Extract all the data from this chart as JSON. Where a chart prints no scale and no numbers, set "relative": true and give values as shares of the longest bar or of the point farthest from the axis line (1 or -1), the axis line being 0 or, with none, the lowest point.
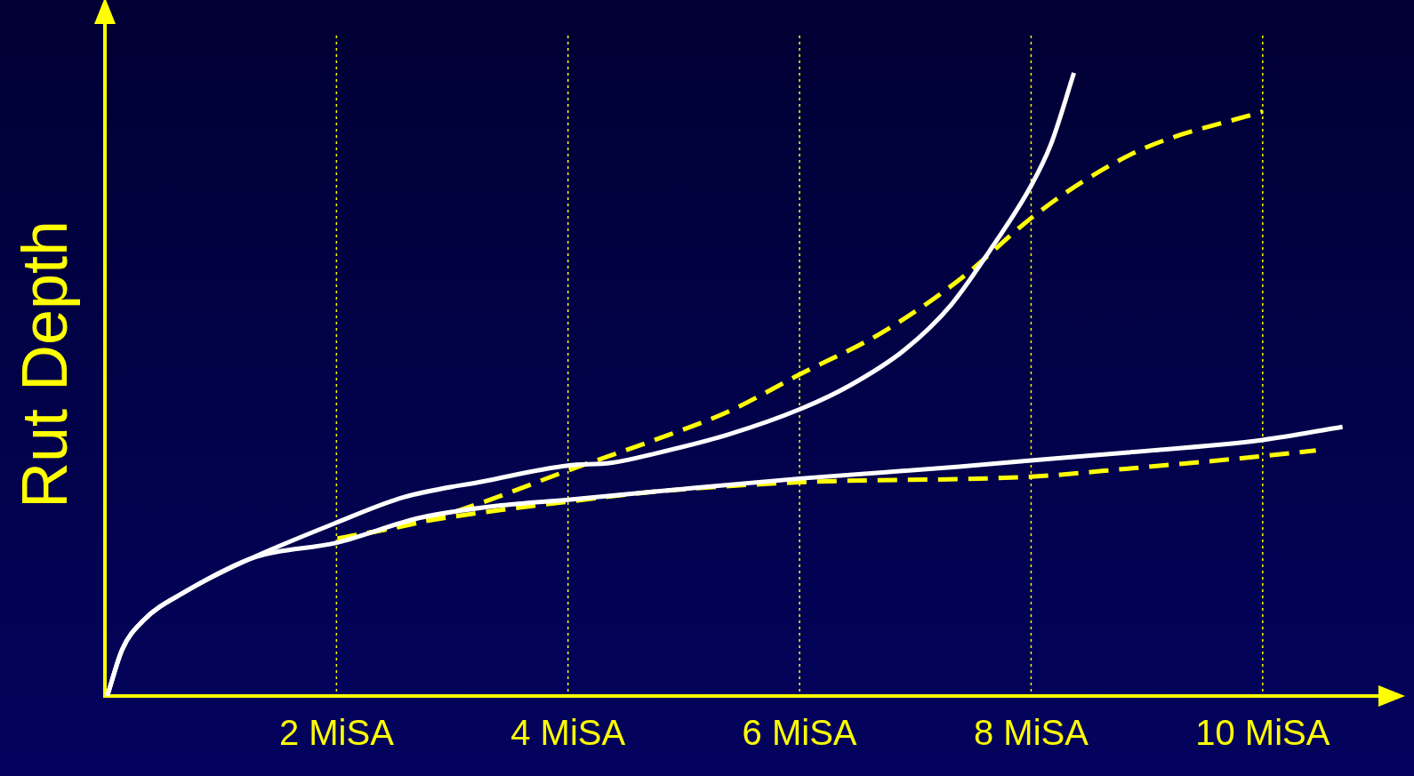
{
  "chart_data": {
    "type": "line",
    "ylabel": "Rut Depth",
    "relative": true,
    "xlim": [
      0,
      11
    ],
    "xticks": [
      {
        "value": 2,
        "label": "2 MiSA"
      },
      {
        "value": 4,
        "label": "4 MiSA"
      },
      {
        "value": 6,
        "label": "6 MiSA"
      },
      {
        "value": 8,
        "label": "8 MiSA"
      },
      {
        "value": 10,
        "label": "10 MiSA"
      }
    ],
    "grid": "x",
    "legend": false,
    "marker": "none",
    "series": [
      {
        "color": "#ffffff",
        "line_style": "solid",
        "x": [
          0.02,
          0.15,
          0.33,
          0.69,
          1.18,
          2.01,
          2.58,
          3.28,
          4,
          4.37,
          4.75,
          5.39,
          6,
          6.44,
          6.91,
          7.31,
          7.64,
          8,
          8.17,
          8.37
        ],
        "values": [
          0,
          0.075,
          0.121,
          0.167,
          0.214,
          0.279,
          0.319,
          0.345,
          0.37,
          0.374,
          0.389,
          0.42,
          0.46,
          0.499,
          0.556,
          0.628,
          0.714,
          0.819,
          0.885,
          1
        ]
      },
      {
        "color": "#ffffff",
        "line_style": "solid",
        "x": [
          0.02,
          0.15,
          0.33,
          0.69,
          1.3,
          2,
          2.72,
          3.42,
          4,
          4.75,
          6,
          7.38,
          8,
          8.84,
          10,
          10.69
        ],
        "values": [
          0,
          0.075,
          0.121,
          0.167,
          0.223,
          0.246,
          0.286,
          0.306,
          0.315,
          0.328,
          0.349,
          0.368,
          0.378,
          0.391,
          0.411,
          0.432
        ]
      },
      {
        "color": "#ffff00",
        "line_style": "dashed",
        "x": [
          2.01,
          2.72,
          3.28,
          4,
          4.75,
          5.39,
          6,
          6.7,
          7.38,
          8,
          8.45,
          9,
          10
        ],
        "values": [
          0.253,
          0.279,
          0.312,
          0.362,
          0.411,
          0.457,
          0.516,
          0.582,
          0.668,
          0.767,
          0.826,
          0.881,
          0.938
        ]
      },
      {
        "color": "#ffff00",
        "line_style": "dashed",
        "x": [
          2.01,
          2.72,
          4,
          4.75,
          6,
          8,
          8.84,
          10,
          10.46
        ],
        "values": [
          0.25,
          0.279,
          0.312,
          0.328,
          0.343,
          0.352,
          0.365,
          0.385,
          0.394
        ]
      }
    ]
  }
}
